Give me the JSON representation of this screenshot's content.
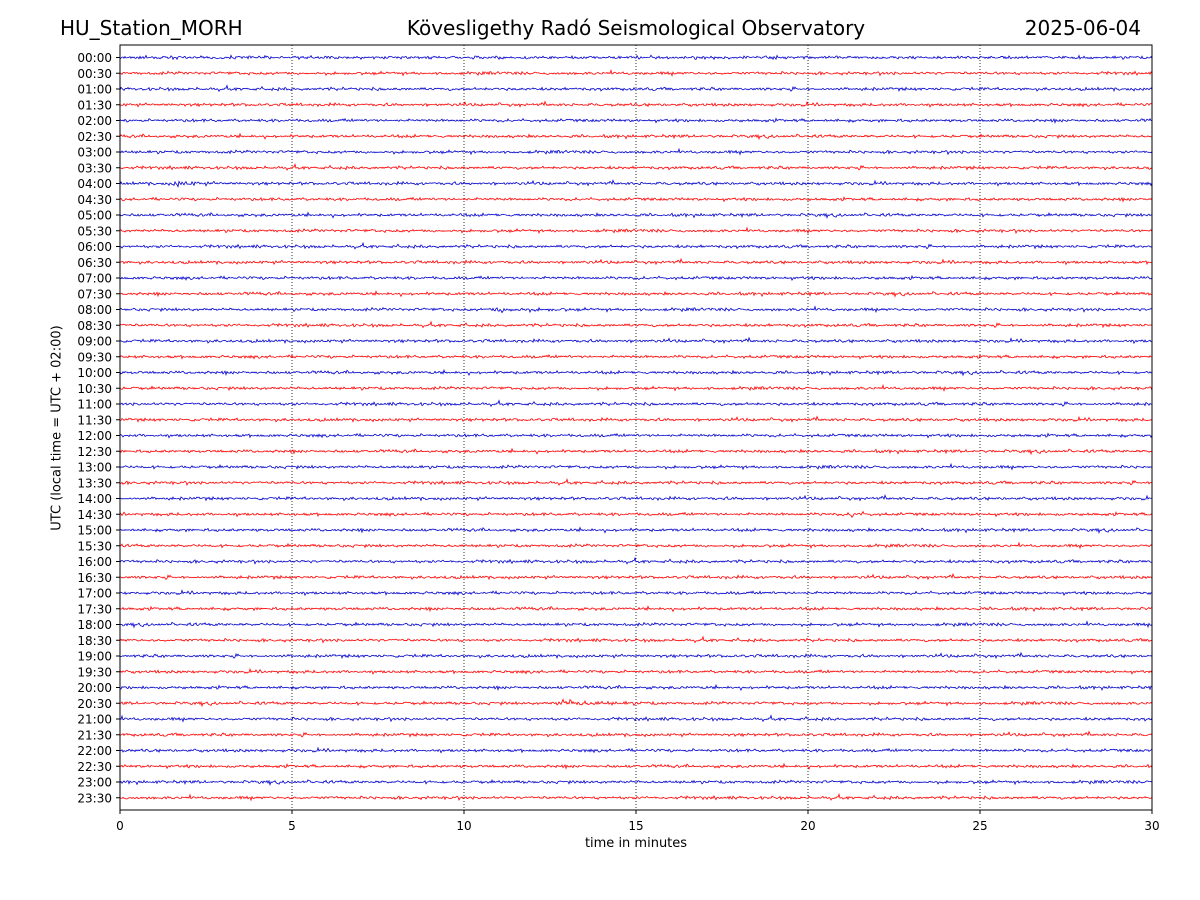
{
  "header": {
    "station": "HU_Station_MORH",
    "observatory": "Kövesligethy Radó Seismological Observatory",
    "date": "2025-06-04"
  },
  "chart_data": {
    "type": "line",
    "title": "Kövesligethy Radó Seismological Observatory",
    "xlabel": "time in minutes",
    "ylabel": "UTC (local time = UTC + 02:00)",
    "xlim": [
      0,
      30
    ],
    "x_ticks": [
      0,
      5,
      10,
      15,
      20,
      25,
      30
    ],
    "grid": "vertical dotted at x ticks",
    "row_labels": [
      "00:00",
      "00:30",
      "01:00",
      "01:30",
      "02:00",
      "02:30",
      "03:00",
      "03:30",
      "04:00",
      "04:30",
      "05:00",
      "05:30",
      "06:00",
      "06:30",
      "07:00",
      "07:30",
      "08:00",
      "08:30",
      "09:00",
      "09:30",
      "10:00",
      "10:30",
      "11:00",
      "11:30",
      "12:00",
      "12:30",
      "13:00",
      "13:30",
      "14:00",
      "14:30",
      "15:00",
      "15:30",
      "16:00",
      "16:30",
      "17:00",
      "17:30",
      "18:00",
      "18:30",
      "19:00",
      "19:30",
      "20:00",
      "20:30",
      "21:00",
      "21:30",
      "22:00",
      "22:30",
      "23:00",
      "23:30"
    ],
    "trace_colors": [
      "#0000cc",
      "#ff0000"
    ],
    "events": [
      {
        "row": "04:00",
        "start_min": 1.5,
        "end_min": 3.0,
        "peak_amplitude": 0.35
      },
      {
        "row": "08:00",
        "start_min": 10.8,
        "end_min": 13.0,
        "peak_amplitude": 0.35
      },
      {
        "row": "14:30",
        "start_min": 21.2,
        "end_min": 21.9,
        "peak_amplitude": 0.55
      },
      {
        "row": "20:30",
        "start_min": 12.6,
        "end_min": 15.5,
        "peak_amplitude": 0.45
      }
    ]
  }
}
